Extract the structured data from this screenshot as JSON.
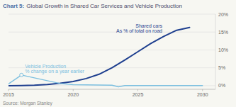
{
  "chart_data": {
    "type": "line",
    "title": "Chart 5:",
    "subtitle": "Global Growth in Shared Car Services and Vehicle Production",
    "source": "Source: Morgan Stanley",
    "annotations": [
      "Shared cars",
      "As % of total on road",
      "Vehicle Production",
      "% change on a year earlier"
    ],
    "series": [
      {
        "type": "line",
        "color": "#1e3f8f",
        "x": [
          2015,
          2016,
          2017,
          2018,
          2019,
          2020,
          2021,
          2022,
          2023,
          2024,
          2025,
          2026,
          2027,
          2028,
          2029
        ],
        "values": [
          0.0,
          0.05,
          0.15,
          0.35,
          0.7,
          1.2,
          2.0,
          3.2,
          5.0,
          7.2,
          9.5,
          11.8,
          13.8,
          15.5,
          16.3
        ]
      },
      {
        "type": "line",
        "color": "#7dc0e0",
        "x": [
          2015,
          2016,
          2017,
          2018,
          2019,
          2020,
          2021,
          2022,
          2023,
          2023.5,
          2024,
          2025,
          2026,
          2027,
          2028,
          2029,
          2030
        ],
        "values": [
          0.5,
          3.0,
          2.2,
          1.4,
          0.6,
          0.3,
          0.25,
          0.2,
          0.15,
          -0.3,
          0.05,
          0.05,
          0.05,
          0.05,
          0.05,
          0.05,
          0.05
        ]
      },
      {
        "type": "scatter",
        "marker": "circle",
        "color": "#7dc0e0",
        "x": [
          2016
        ],
        "values": [
          3.0
        ]
      }
    ],
    "xlim": [
      2015,
      2031
    ],
    "xticks": [
      2015,
      2020,
      2025,
      2030
    ],
    "ylim": [
      -1,
      20
    ],
    "yticks": [
      {
        "value": 0,
        "label": "0%"
      },
      {
        "value": 5,
        "label": "5%"
      },
      {
        "value": 10,
        "label": "10%"
      },
      {
        "value": 15,
        "label": "15%"
      },
      {
        "value": 20,
        "label": "20%"
      }
    ],
    "grid": true
  }
}
